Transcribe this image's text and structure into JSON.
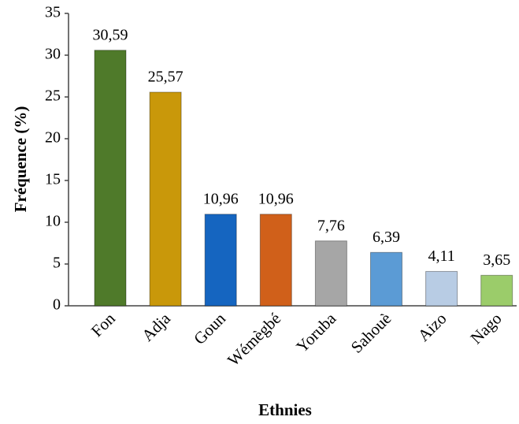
{
  "chart_data": {
    "type": "bar",
    "x_label": "Ethnies",
    "y_label": "Fréquence (%)",
    "categories": [
      "Fon",
      "Adja",
      "Goun",
      "Wémègbé",
      "Yoruba",
      "Sahouè",
      "Aizo",
      "Nago"
    ],
    "values": [
      30.59,
      25.57,
      10.96,
      10.96,
      7.76,
      6.39,
      4.11,
      3.65
    ],
    "value_labels": [
      "30,59",
      "25,57",
      "10,96",
      "10,96",
      "7,76",
      "6,39",
      "4,11",
      "3,65"
    ],
    "colors": [
      "#4f7a2a",
      "#c9980a",
      "#1565c0",
      "#d0601a",
      "#a6a6a6",
      "#5b9bd5",
      "#b8cce4",
      "#9bcc6a"
    ],
    "ylim": [
      0,
      35
    ],
    "yticks": [
      0,
      5,
      10,
      15,
      20,
      25,
      30,
      35
    ]
  }
}
